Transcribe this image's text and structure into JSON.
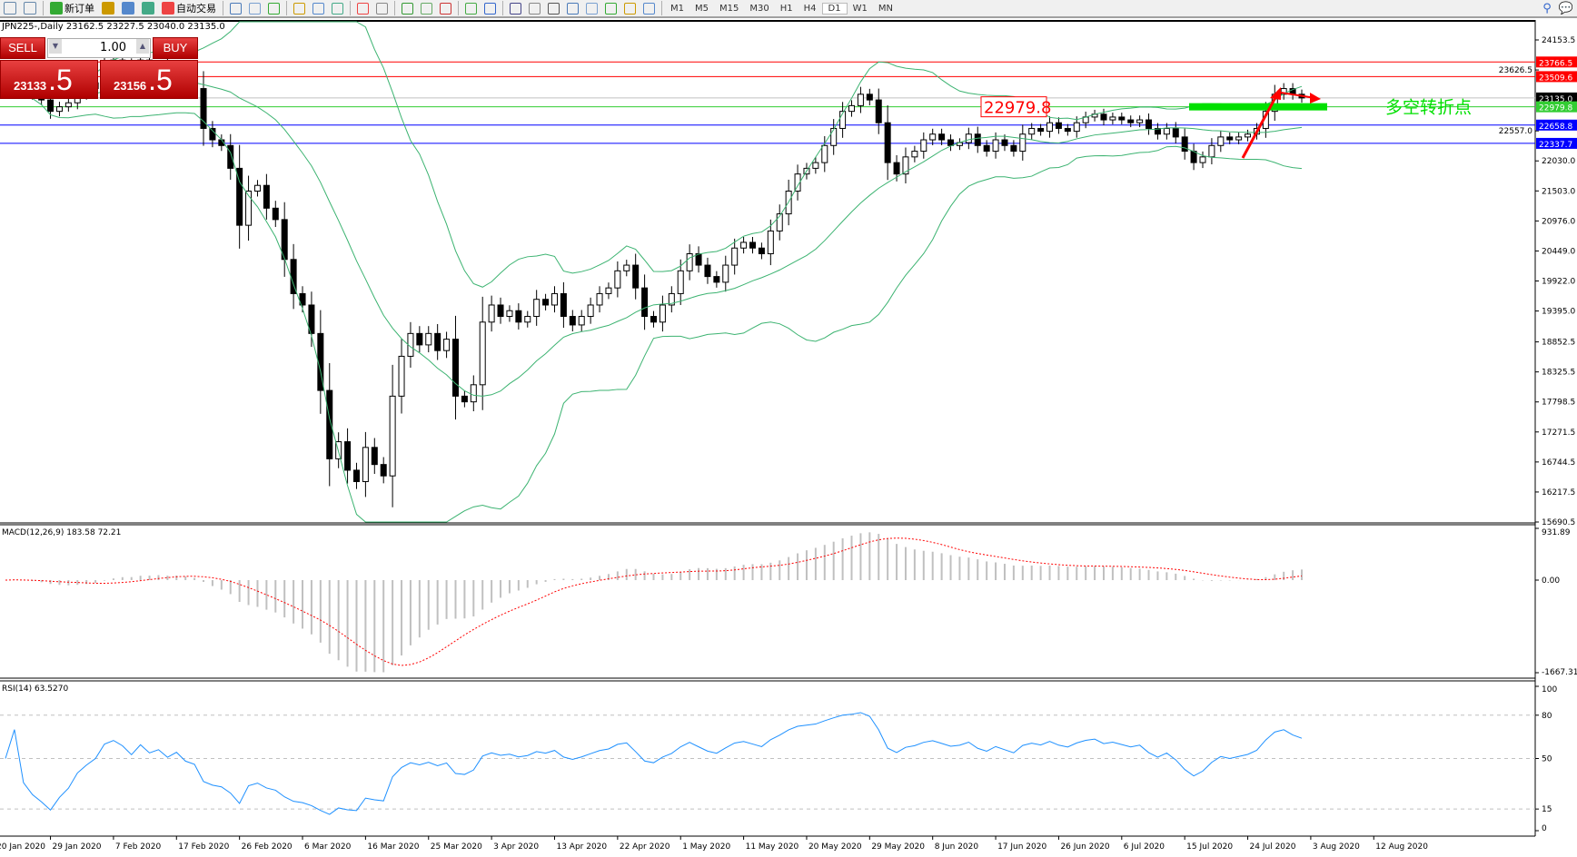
{
  "toolbar": {
    "buttons": [
      {
        "icon": "new-order-icon",
        "label": "新订单"
      },
      {
        "icon": "autotrading-icon",
        "label": "自动交易"
      }
    ],
    "timeframes": [
      "M1",
      "M5",
      "M15",
      "M30",
      "H1",
      "H4",
      "D1",
      "W1",
      "MN"
    ],
    "active_timeframe": "D1"
  },
  "chart": {
    "title": "JPN225-,Daily  23162.5 23227.5 23040.0 23135.0",
    "macd_label": "MACD(12,26,9) 183.58 72.21",
    "rsi_label": "RSI(14) 63.5270",
    "annotation_box": "22979.8",
    "annotation_text": "多空转折点",
    "colors": {
      "bull": "#ffffff",
      "bear": "#000000",
      "bands": "#3cb371",
      "signal": "#ff0000",
      "rsi": "#1e90ff",
      "hist": "#c0c0c0"
    }
  },
  "trade_panel": {
    "sell_label": "SELL",
    "buy_label": "BUY",
    "lot": "1.00",
    "sell_big": "23133",
    "sell_small": ".5",
    "buy_big": "23156",
    "buy_small": ".5"
  },
  "chart_data": {
    "type": "candlestick",
    "price_axis": [
      "24153.5",
      "23626.5",
      "22557.0",
      "22030.0",
      "21503.0",
      "20976.0",
      "20449.0",
      "19922.0",
      "19395.0",
      "18852.5",
      "18325.5",
      "17798.5",
      "17271.5",
      "16744.5",
      "16217.5",
      "15690.5"
    ],
    "price_range": [
      15690.5,
      24153.5
    ],
    "levels": [
      {
        "value": "23766.5",
        "color": "#ff0000"
      },
      {
        "value": "23509.6",
        "color": "#ff0000"
      },
      {
        "value": "23135.0",
        "color": "#000000",
        "line": "#c0c0c0"
      },
      {
        "value": "22979.8",
        "color": "#32cd32"
      },
      {
        "value": "22658.8",
        "color": "#0000ff"
      },
      {
        "value": "22337.7",
        "color": "#0000ff"
      }
    ],
    "macd_axis": [
      "931.89",
      "0.00",
      "-1667.31"
    ],
    "macd_range": [
      -1667.31,
      931.89
    ],
    "rsi_axis": [
      "100",
      "80",
      "50",
      "15",
      "0"
    ],
    "date_labels": [
      "20 Jan 2020",
      "29 Jan 2020",
      "7 Feb 2020",
      "17 Feb 2020",
      "26 Feb 2020",
      "6 Mar 2020",
      "16 Mar 2020",
      "25 Mar 2020",
      "3 Apr 2020",
      "13 Apr 2020",
      "22 Apr 2020",
      "1 May 2020",
      "11 May 2020",
      "20 May 2020",
      "29 May 2020",
      "8 Jun 2020",
      "17 Jun 2020",
      "26 Jun 2020",
      "6 Jul 2020",
      "15 Jul 2020",
      "24 Jul 2020",
      "3 Aug 2020",
      "12 Aug 2020"
    ],
    "closes": [
      23400,
      23500,
      23300,
      23200,
      23100,
      22900,
      22980,
      23050,
      23200,
      23300,
      23400,
      23700,
      23800,
      23700,
      23500,
      23800,
      23600,
      23700,
      23500,
      23650,
      23400,
      23300,
      22600,
      22400,
      22300,
      21900,
      20900,
      21500,
      21600,
      21200,
      21000,
      20300,
      19700,
      19500,
      19000,
      18000,
      16800,
      17100,
      16600,
      16400,
      17000,
      16700,
      16500,
      17900,
      18600,
      19000,
      18800,
      19000,
      18700,
      18900,
      17900,
      17800,
      18100,
      19200,
      19500,
      19300,
      19400,
      19200,
      19300,
      19600,
      19500,
      19700,
      19300,
      19150,
      19300,
      19500,
      19700,
      19800,
      20100,
      20200,
      19800,
      19300,
      19200,
      19500,
      19700,
      20100,
      20400,
      20200,
      20000,
      19900,
      20200,
      20500,
      20600,
      20500,
      20400,
      20800,
      21100,
      21500,
      21800,
      21900,
      22000,
      22300,
      22600,
      22900,
      23000,
      23200,
      23100,
      22700,
      22000,
      21800,
      22100,
      22200,
      22400,
      22500,
      22400,
      22300,
      22350,
      22500,
      22300,
      22200,
      22400,
      22300,
      22200,
      22500,
      22600,
      22550,
      22700,
      22600,
      22550,
      22700,
      22800,
      22850,
      22750,
      22800,
      22750,
      22700,
      22750,
      22600,
      22500,
      22600,
      22450,
      22200,
      22000,
      22100,
      22300,
      22450,
      22400,
      22450,
      22500,
      22600,
      22900,
      23200,
      23300,
      23200,
      23135
    ]
  }
}
